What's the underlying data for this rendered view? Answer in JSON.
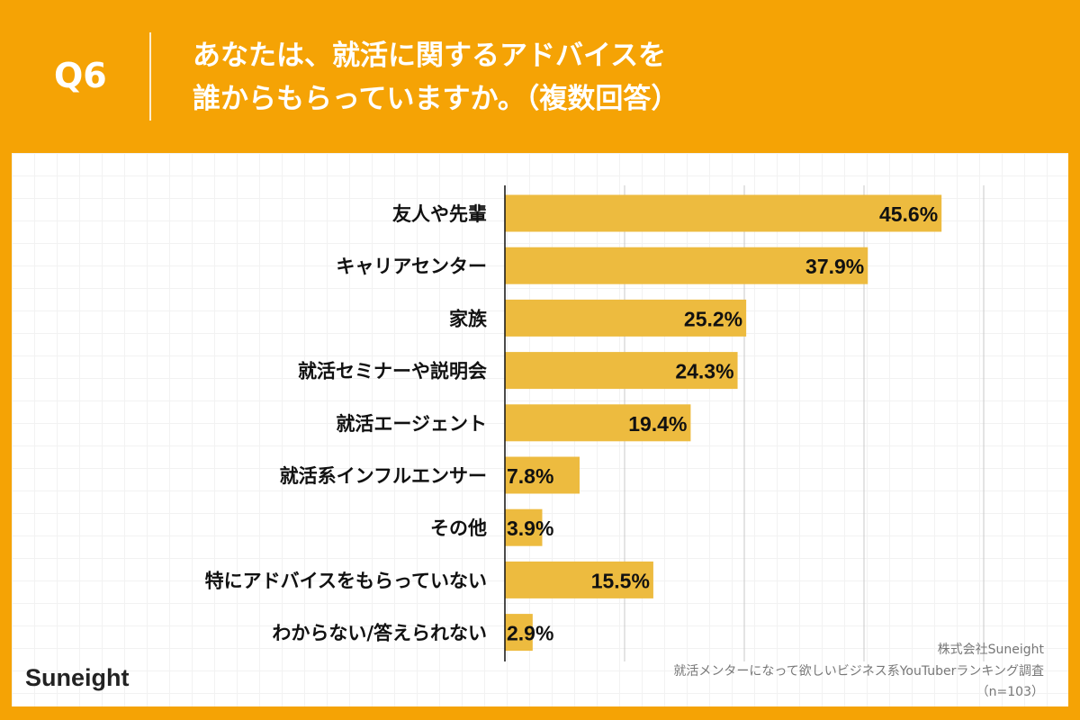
{
  "header": {
    "q_label": "Q6",
    "title_line1": "あなたは、就活に関するアドバイスを",
    "title_line2": "誰からもらっていますか。（複数回答）"
  },
  "footer": {
    "logo": "Suneight",
    "company": "株式会社Suneight",
    "survey": "就活メンターになって欲しいビジネス系YouTuberランキング調査",
    "sample": "（n=103）"
  },
  "colors": {
    "background": "#F5A305",
    "bar": "#EDBB3F",
    "text": "#111111"
  },
  "chart_data": {
    "type": "bar",
    "orientation": "horizontal",
    "categories": [
      "友人や先輩",
      "キャリアセンター",
      "家族",
      "就活セミナーや説明会",
      "就活エージェント",
      "就活系インフルエンサー",
      "その他",
      "特にアドバイスをもらっていない",
      "わからない/答えられない"
    ],
    "values": [
      45.6,
      37.9,
      25.2,
      24.3,
      19.4,
      7.8,
      3.9,
      15.5,
      2.9
    ],
    "labels": [
      "45.6%",
      "37.9%",
      "25.2%",
      "24.3%",
      "19.4%",
      "7.8%",
      "3.9%",
      "15.5%",
      "2.9%"
    ],
    "xlim": [
      0,
      50
    ],
    "gridlines": [
      12.5,
      25,
      37.5,
      50
    ],
    "grid": true
  }
}
